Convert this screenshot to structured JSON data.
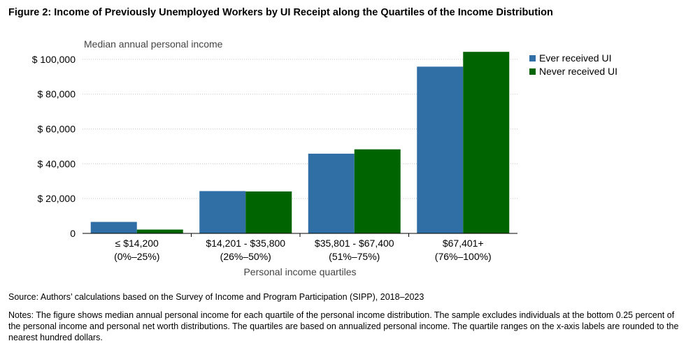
{
  "figure": {
    "title": "Figure 2: Income of Previously Unemployed Workers by UI Receipt along the Quartiles of the Income Distribution",
    "source": "Source: Authors’ calculations based on the Survey of Income and Program Participation (SIPP), 2018–2023",
    "notes": "Notes: The figure shows median annual personal income for each quartile of the personal income distribution. The sample excludes individuals at the bottom 0.25 percent of the personal income and personal net worth distributions. The quartiles are based on annualized personal income. The quartile ranges on the x-axis labels are rounded to the nearest hundred dollars."
  },
  "chart_data": {
    "type": "bar",
    "title": "",
    "ylabel": "Median annual personal income",
    "xlabel": "Personal income quartiles",
    "ylim": [
      0,
      110000
    ],
    "yticks": [
      0,
      20000,
      40000,
      60000,
      80000,
      100000
    ],
    "ytick_labels": [
      "0",
      "$ 20,000",
      "$ 40,000",
      "$ 60,000",
      "$ 80,000",
      "$ 100,000"
    ],
    "categories": [
      [
        "≤ $14,200",
        "(0%–25%)"
      ],
      [
        "$14,201 - $35,800",
        "(26%–50%)"
      ],
      [
        "$35,801 - $67,400",
        "(51%–75%)"
      ],
      [
        "$67,401+",
        "(76%–100%)"
      ]
    ],
    "series": [
      {
        "name": "Ever received UI",
        "color": "#2f6fa5",
        "values": [
          6600,
          24300,
          45800,
          95800
        ]
      },
      {
        "name": "Never received UI",
        "color": "#006400",
        "values": [
          2200,
          24100,
          48300,
          104300
        ]
      }
    ],
    "grid": true,
    "legend": "right"
  }
}
